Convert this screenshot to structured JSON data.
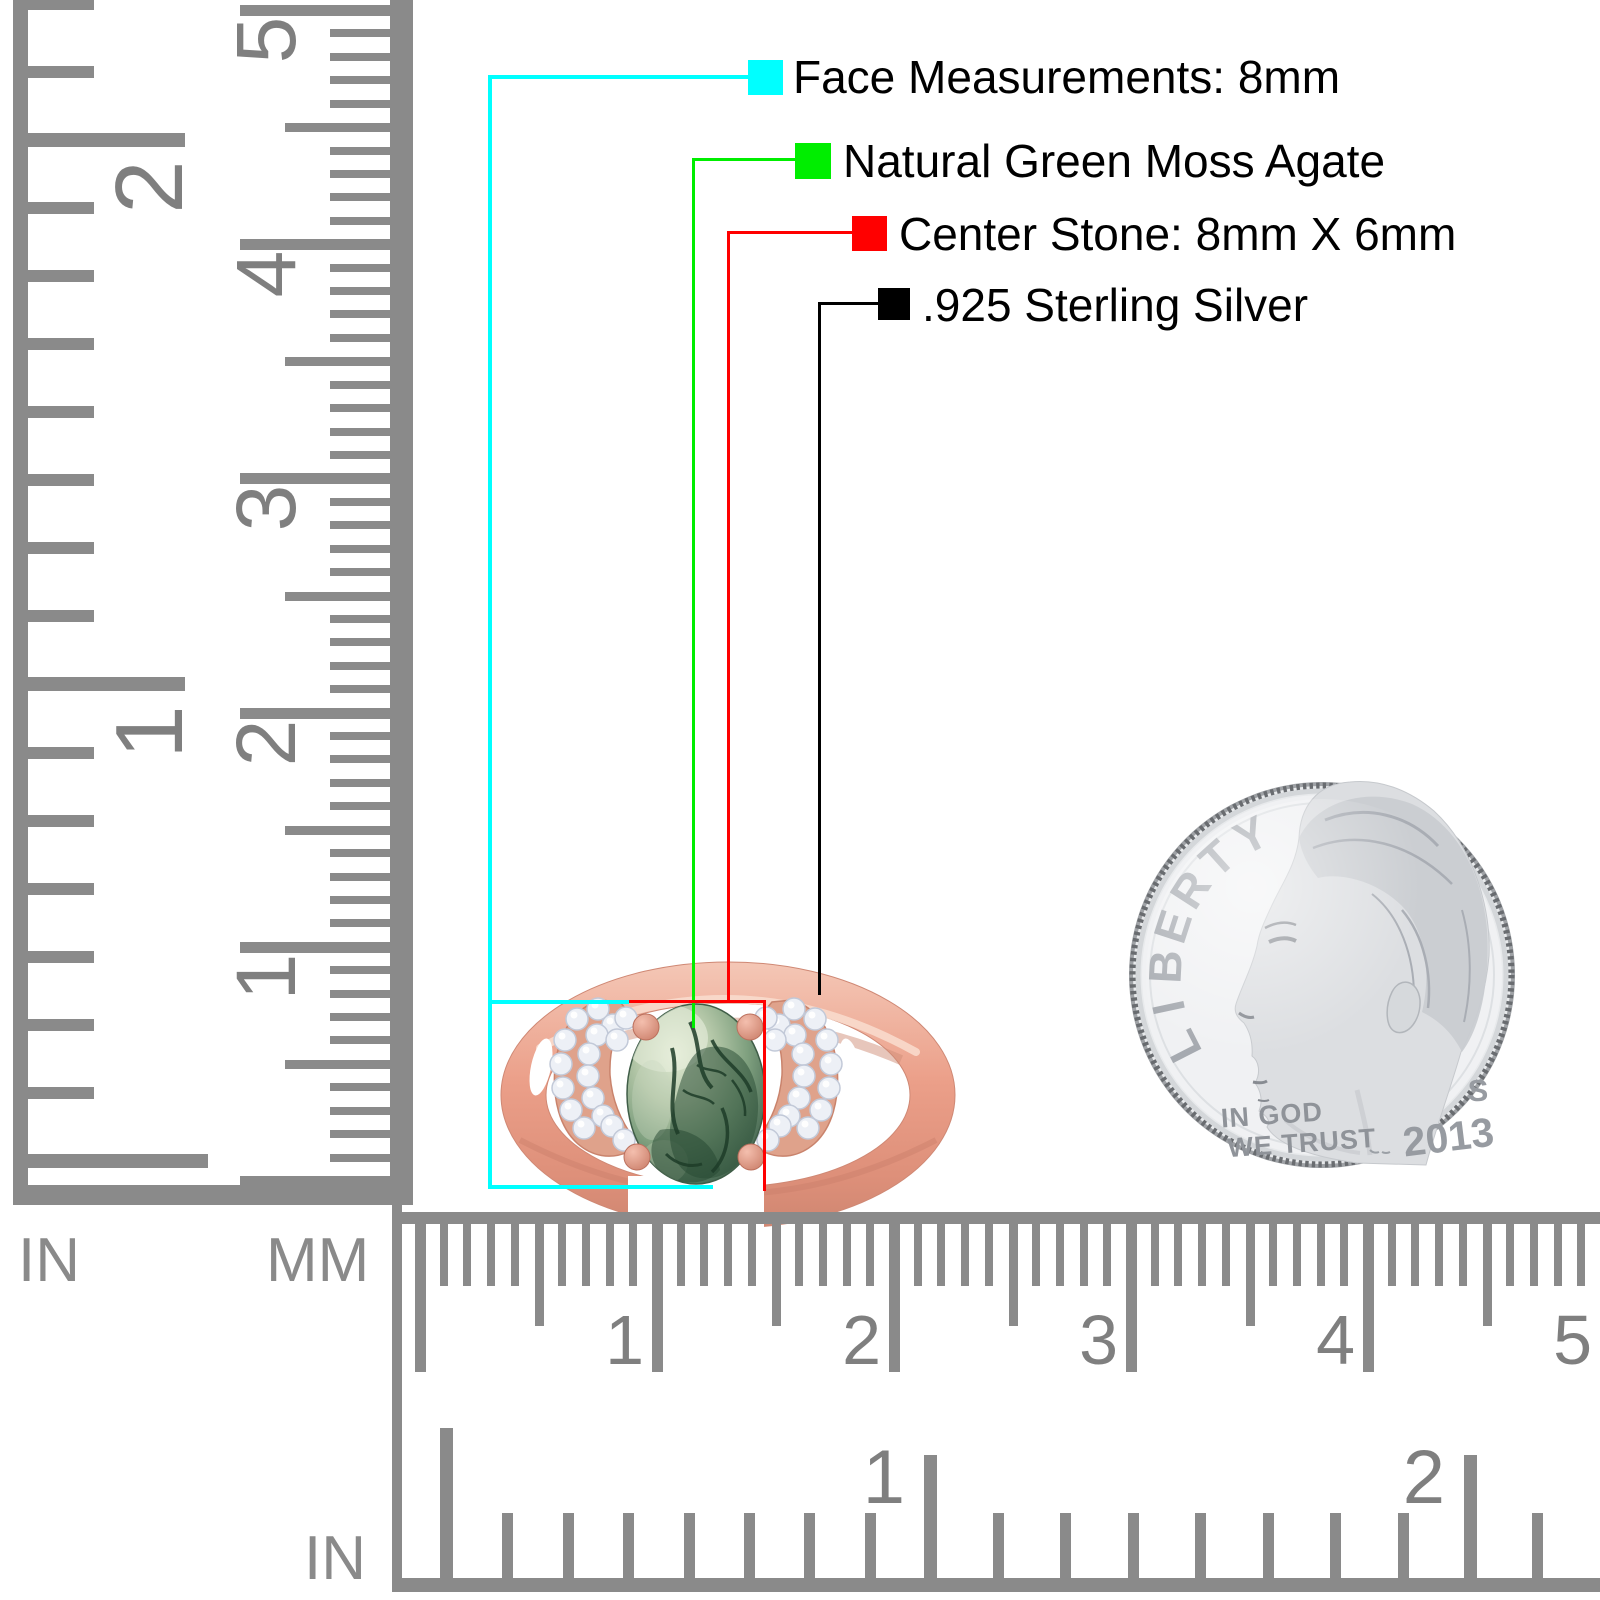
{
  "annotations": {
    "items": [
      {
        "label": "Face Measurements: 8mm",
        "color": "#00FFFF"
      },
      {
        "label": "Natural Green Moss Agate",
        "color": "#00EE00"
      },
      {
        "label": "Center Stone: 8mm X 6mm",
        "color": "#FF0000"
      },
      {
        "label": ".925 Sterling Silver",
        "color": "#000000"
      }
    ]
  },
  "rulers": {
    "left_inch": {
      "unit": "IN",
      "labels": [
        "2",
        "1"
      ]
    },
    "left_cm": {
      "unit": "MM",
      "labels": [
        "5",
        "4",
        "3",
        "2",
        "1"
      ]
    },
    "bottom_cm": {
      "labels": [
        "1",
        "2",
        "3",
        "4",
        "5"
      ]
    },
    "bottom_inch": {
      "unit": "IN",
      "labels": [
        "1",
        "2"
      ]
    }
  },
  "coin": {
    "legend": "LIBERTY",
    "motto_line1": "IN GOD",
    "motto_line2": "WE TRUST",
    "mint_mark": "S",
    "year": "2013"
  },
  "ring": {
    "metal_color": "#E89C86",
    "stone_color": "#3E5C44",
    "accent_stone_color": "#EDF0F6"
  }
}
